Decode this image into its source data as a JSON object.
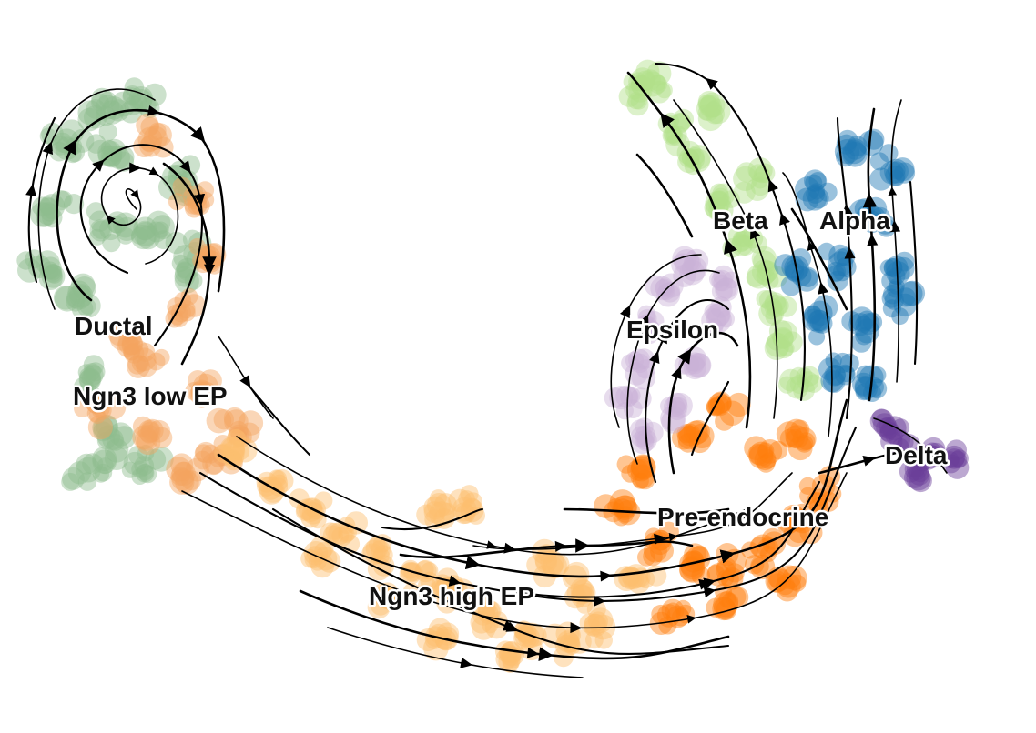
{
  "chart_data": {
    "type": "scatter",
    "subtype": "velocity-stream-embedding",
    "title": "",
    "xlabel": "",
    "ylabel": "",
    "axes_visible": false,
    "grid": false,
    "legend": "on data",
    "clusters": [
      {
        "name": "Ductal",
        "color": "#8fbc8f"
      },
      {
        "name": "Ngn3 low EP",
        "color": "#f4a460"
      },
      {
        "name": "Ngn3 high EP",
        "color": "#fdbf6f"
      },
      {
        "name": "Pre-endocrine",
        "color": "#ff7f0e"
      },
      {
        "name": "Beta",
        "color": "#b2df8a"
      },
      {
        "name": "Alpha",
        "color": "#1f77b4"
      },
      {
        "name": "Delta",
        "color": "#6a3d9a"
      },
      {
        "name": "Epsilon",
        "color": "#cab2d6"
      }
    ],
    "labels": [
      "Ductal",
      "Ngn3 low EP",
      "Ngn3 high EP",
      "Pre-endocrine",
      "Beta",
      "Alpha",
      "Epsilon",
      "Delta"
    ]
  }
}
